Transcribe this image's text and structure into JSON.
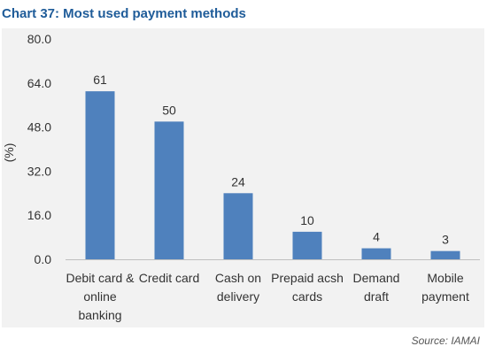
{
  "title": "Chart 37: Most used payment methods",
  "source": "Source: IAMAI",
  "colors": {
    "bar": "#4f81bd",
    "title": "#1f5c99",
    "panel": "#f2f2f2",
    "axis": "#bfbfbf",
    "text": "#333333"
  },
  "chart_data": {
    "type": "bar",
    "title": "Chart 37: Most used payment methods",
    "ylabel": "(%)",
    "xlabel": "",
    "ylim": [
      0,
      80
    ],
    "yticks": [
      "0.0",
      "16.0",
      "32.0",
      "48.0",
      "64.0",
      "80.0"
    ],
    "categories": [
      [
        "Debit card &",
        "online",
        "banking"
      ],
      [
        "Credit card"
      ],
      [
        "Cash on",
        "delivery"
      ],
      [
        "Prepaid acsh",
        "cards"
      ],
      [
        "Demand",
        "draft"
      ],
      [
        "Mobile",
        "payment"
      ]
    ],
    "values": [
      61,
      50,
      24,
      10,
      4,
      3
    ],
    "data_labels": [
      "61",
      "50",
      "24",
      "10",
      "4",
      "3"
    ],
    "grid": false,
    "legend": "none"
  }
}
